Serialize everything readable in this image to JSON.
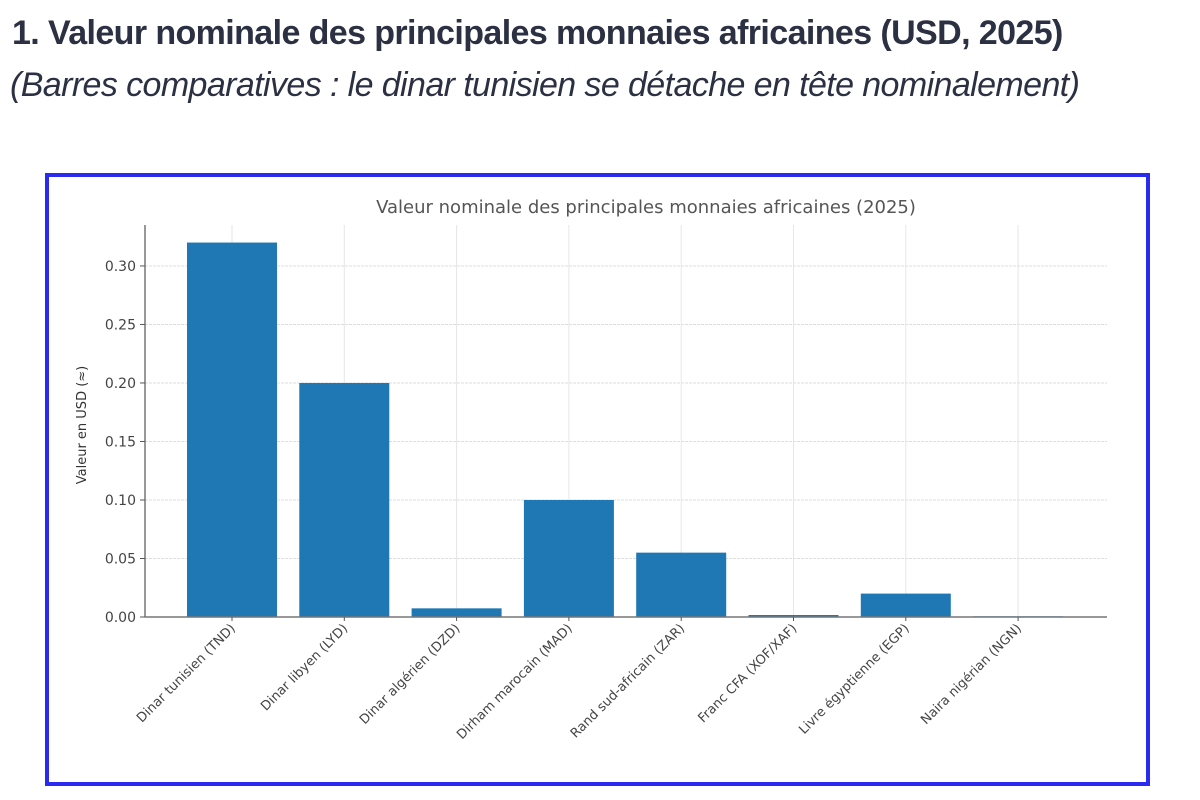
{
  "page": {
    "heading": "1. Valeur nominale des principales monnaies africaines (USD, 2025)",
    "subheading": "(Barres comparatives : le dinar tunisien se détache en tête nominalement)"
  },
  "colors": {
    "bar": "#1f77b4",
    "frame": "#2a2af0",
    "heading": "#2b3042"
  },
  "chart_data": {
    "type": "bar",
    "title": "Valeur nominale des principales monnaies africaines (2025)",
    "xlabel": "",
    "ylabel": "Valeur en USD (≈)",
    "categories": [
      "Dinar tunisien (TND)",
      "Dinar libyen (LYD)",
      "Dinar algérien (DZD)",
      "Dirham marocain (MAD)",
      "Rand sud-africain (ZAR)",
      "Franc CFA (XOF/XAF)",
      "Livre égyptienne (EGP)",
      "Naira nigérian (NGN)"
    ],
    "values": [
      0.32,
      0.2,
      0.0074,
      0.1,
      0.055,
      0.0017,
      0.02,
      0.0006
    ],
    "ylim": [
      0,
      0.335
    ],
    "yticks": [
      0.0,
      0.05,
      0.1,
      0.15,
      0.2,
      0.25,
      0.3
    ],
    "ytick_labels": [
      "0.00",
      "0.05",
      "0.10",
      "0.15",
      "0.20",
      "0.25",
      "0.30"
    ],
    "grid": true,
    "legend": "none"
  }
}
